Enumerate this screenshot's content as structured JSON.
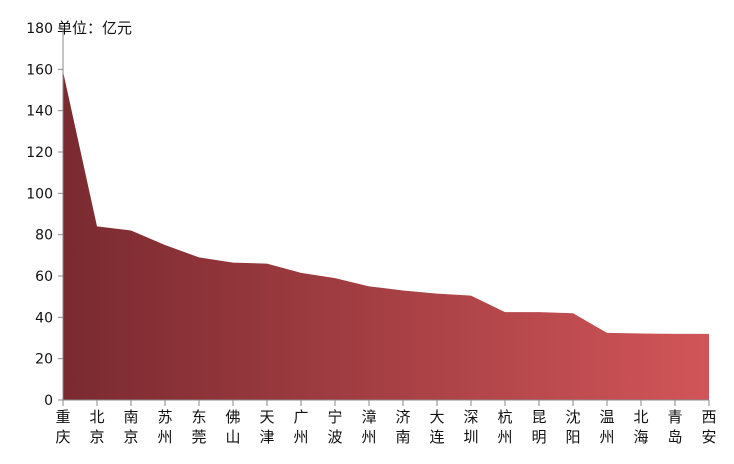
{
  "chart_data": {
    "type": "area",
    "title": "",
    "unit_label": "单位：亿元",
    "categories": [
      "重庆",
      "北京",
      "南京",
      "苏州",
      "东莞",
      "佛山",
      "天津",
      "广州",
      "宁波",
      "漳州",
      "济南",
      "大连",
      "深圳",
      "杭州",
      "昆明",
      "沈阳",
      "温州",
      "北海",
      "青岛",
      "西安"
    ],
    "values": [
      159,
      84,
      82,
      75,
      69,
      66.5,
      66,
      61.5,
      59,
      55,
      53,
      51.5,
      50.5,
      42.5,
      42.5,
      42,
      32.5,
      32.2,
      32,
      32
    ],
    "ylim": [
      0,
      180
    ],
    "yticks": [
      0,
      20,
      40,
      60,
      80,
      100,
      120,
      140,
      160,
      180
    ],
    "grid": false,
    "colors": {
      "gradient_start": "#7a2a30",
      "gradient_end": "#d15558",
      "axis": "#888888"
    }
  }
}
